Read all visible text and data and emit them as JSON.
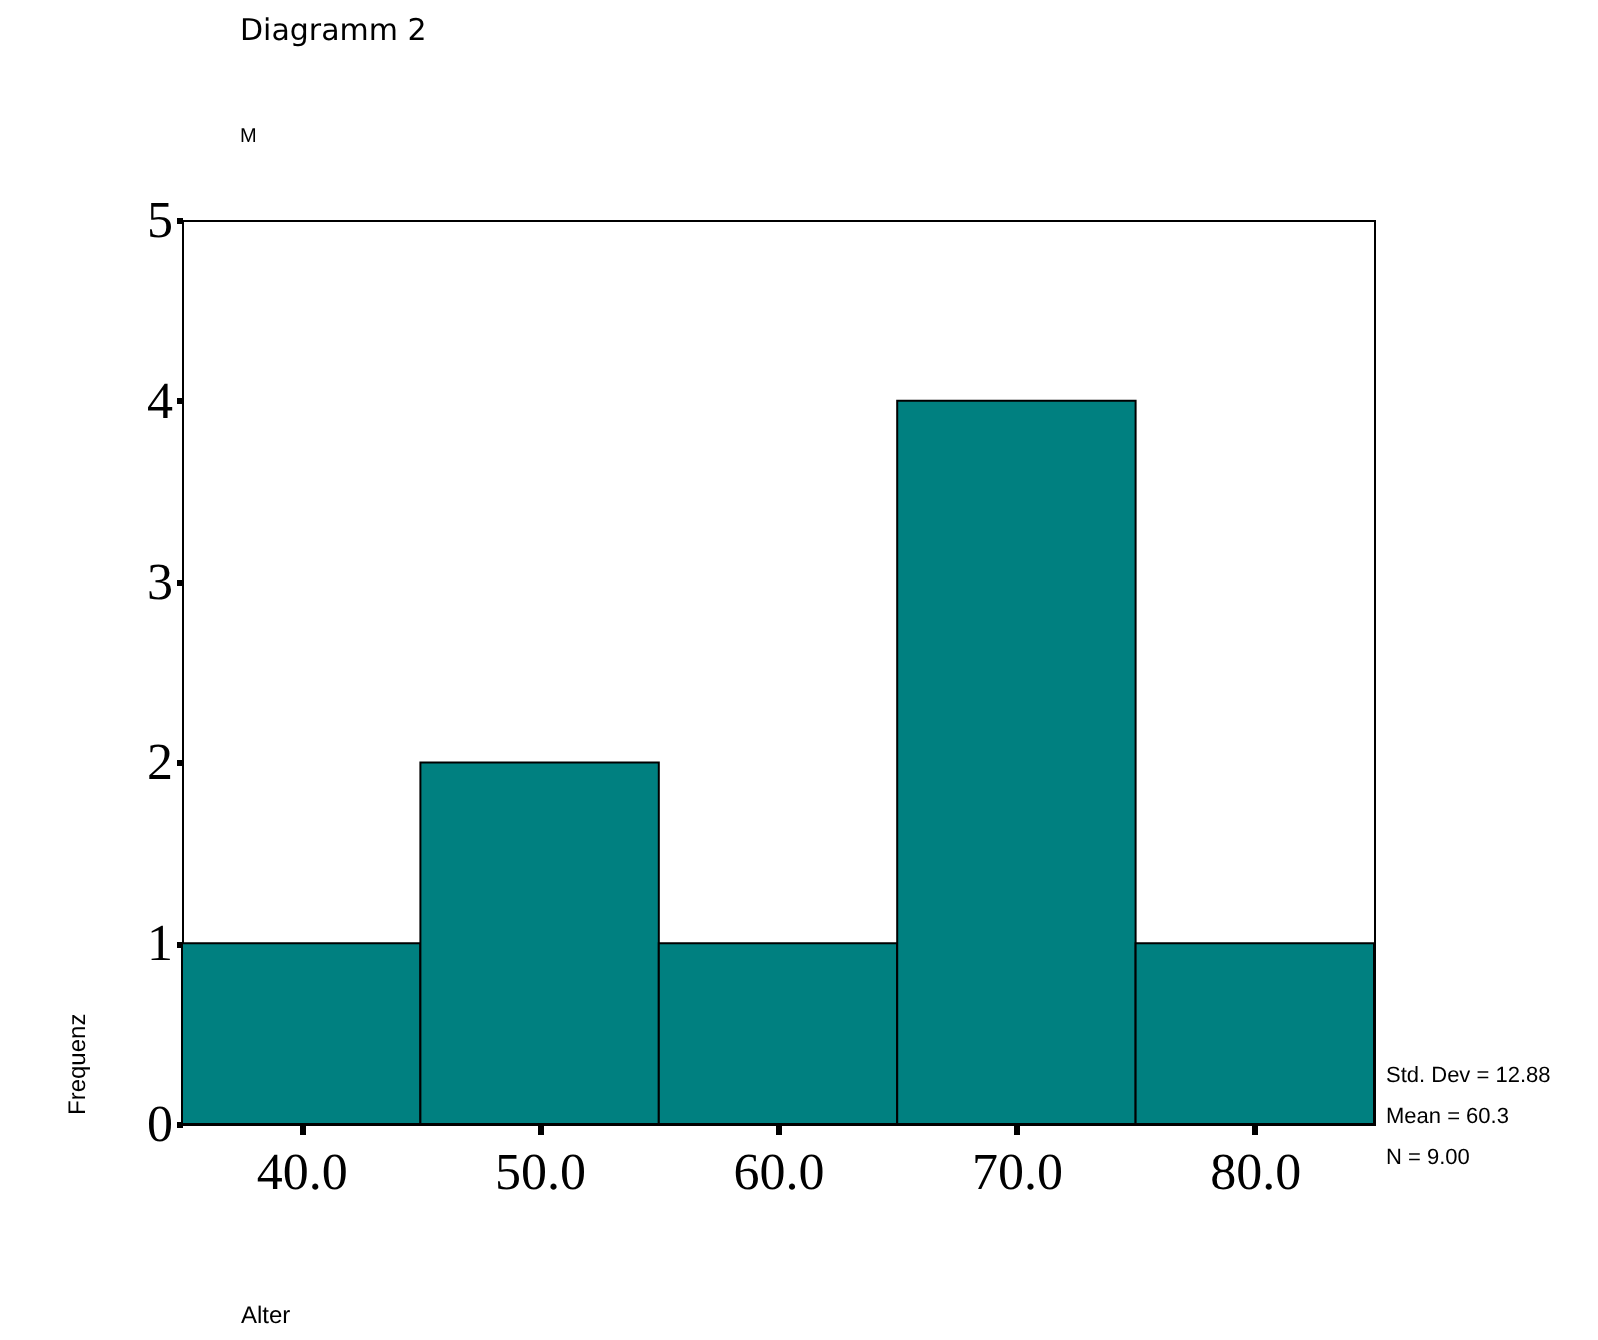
{
  "chart_data": {
    "type": "histogram",
    "title": "Diagramm 2",
    "subtitle": "M",
    "xlabel": "Alter",
    "ylabel": "Frequenz",
    "bins": [
      35,
      45,
      55,
      65,
      75,
      85
    ],
    "values": [
      1,
      2,
      1,
      4,
      1
    ],
    "color": "#008080",
    "xlim": [
      35,
      85
    ],
    "xticks": [
      {
        "value": 40,
        "label": "40.0"
      },
      {
        "value": 50,
        "label": "50.0"
      },
      {
        "value": 60,
        "label": "60.0"
      },
      {
        "value": 70,
        "label": "70.0"
      },
      {
        "value": 80,
        "label": "80.0"
      }
    ],
    "ylim": [
      0,
      5
    ],
    "yticks": [
      0,
      1,
      2,
      3,
      4,
      5
    ],
    "grid": false,
    "annotations": [
      "Std. Dev = 12.88",
      "Mean = 60.3",
      "N = 9.00"
    ]
  }
}
